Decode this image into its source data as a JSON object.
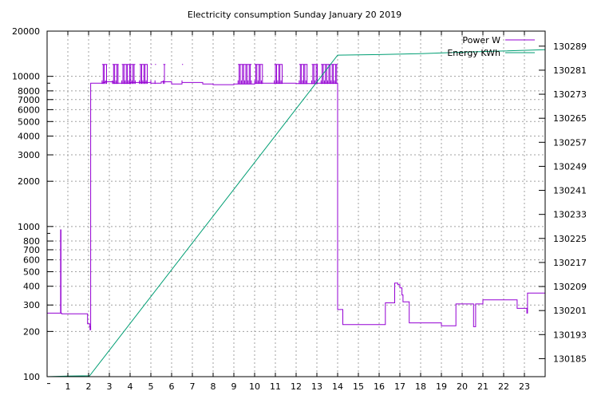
{
  "chart_data": {
    "type": "line",
    "title": "Electricity consumption Sunday January 20 2019",
    "xlabel": "",
    "ylabel": "",
    "y2label": "",
    "xlim": [
      0,
      24
    ],
    "ylim": [
      100,
      20000
    ],
    "y_scale": "log",
    "y2lim": [
      130179,
      130294
    ],
    "grid": true,
    "legend_position": "top-right",
    "x_ticks": [
      1,
      2,
      3,
      4,
      5,
      6,
      7,
      8,
      9,
      10,
      11,
      12,
      13,
      14,
      15,
      16,
      17,
      18,
      19,
      20,
      21,
      22,
      23
    ],
    "y_ticks": [
      100,
      200,
      300,
      400,
      500,
      600,
      700,
      800,
      1000,
      2000,
      3000,
      4000,
      5000,
      6000,
      7000,
      8000,
      10000,
      20000
    ],
    "y2_ticks": [
      130185,
      130193,
      130201,
      130209,
      130217,
      130225,
      130233,
      130241,
      130249,
      130257,
      130265,
      130273,
      130281,
      130289
    ],
    "colors": {
      "power": "#9400d3",
      "energy": "#009e73"
    },
    "series": [
      {
        "name": "Power W",
        "axis": "y",
        "points": [
          [
            0,
            265
          ],
          [
            0.62,
            265
          ],
          [
            0.65,
            950
          ],
          [
            0.67,
            265
          ],
          [
            0.7,
            262
          ],
          [
            0.9,
            262
          ],
          [
            1.0,
            262
          ],
          [
            1.5,
            262
          ],
          [
            1.9,
            262
          ],
          [
            1.95,
            225
          ],
          [
            2.05,
            215
          ],
          [
            2.07,
            205
          ],
          [
            2.1,
            9000
          ],
          [
            2.6,
            9000
          ],
          [
            2.7,
            9100
          ],
          [
            2.8,
            9200
          ],
          [
            3.2,
            9000
          ],
          [
            4.0,
            9100
          ],
          [
            5.0,
            9000
          ],
          [
            5.5,
            9200
          ],
          [
            6.0,
            8900
          ],
          [
            6.5,
            9100
          ],
          [
            7.5,
            8900
          ],
          [
            8.0,
            8800
          ],
          [
            9.0,
            8900
          ],
          [
            10.0,
            9000
          ],
          [
            11.0,
            9000
          ],
          [
            12.0,
            8950
          ],
          [
            13.0,
            9000
          ],
          [
            13.95,
            9000
          ],
          [
            14.0,
            280
          ],
          [
            14.2,
            280
          ],
          [
            14.25,
            222
          ],
          [
            16.2,
            222
          ],
          [
            16.3,
            310
          ],
          [
            16.7,
            310
          ],
          [
            16.75,
            420
          ],
          [
            16.9,
            410
          ],
          [
            17.0,
            390
          ],
          [
            17.1,
            350
          ],
          [
            17.15,
            315
          ],
          [
            17.4,
            315
          ],
          [
            17.45,
            228
          ],
          [
            18.9,
            228
          ],
          [
            19.0,
            218
          ],
          [
            19.6,
            218
          ],
          [
            19.7,
            305
          ],
          [
            20.5,
            305
          ],
          [
            20.55,
            215
          ],
          [
            20.65,
            305
          ],
          [
            20.9,
            305
          ],
          [
            21.0,
            325
          ],
          [
            22.6,
            325
          ],
          [
            22.65,
            285
          ],
          [
            23.1,
            285
          ],
          [
            23.12,
            265
          ],
          [
            23.15,
            360
          ],
          [
            23.95,
            360
          ],
          [
            24.0,
            280
          ]
        ],
        "spike_bands": [
          [
            2.65,
            2.9
          ],
          [
            3.15,
            3.45
          ],
          [
            3.6,
            4.25
          ],
          [
            4.45,
            4.85
          ],
          [
            5.0,
            5.05
          ],
          [
            5.2,
            5.25
          ],
          [
            5.6,
            5.7
          ],
          [
            6.5,
            6.55
          ],
          [
            9.2,
            9.85
          ],
          [
            10.0,
            10.4
          ],
          [
            10.95,
            11.35
          ],
          [
            12.15,
            12.55
          ],
          [
            12.75,
            13.05
          ],
          [
            13.2,
            14.0
          ]
        ],
        "spike_peak": 12000
      },
      {
        "name": "Energy KWh",
        "axis": "y2",
        "points": [
          [
            0,
            130179.0
          ],
          [
            1.0,
            130179.2
          ],
          [
            2.05,
            130179.3
          ],
          [
            14.0,
            130286.0
          ],
          [
            16.0,
            130286.2
          ],
          [
            18.0,
            130286.5
          ],
          [
            20.0,
            130287.0
          ],
          [
            22.0,
            130287.4
          ],
          [
            24.0,
            130287.8
          ]
        ]
      }
    ]
  }
}
